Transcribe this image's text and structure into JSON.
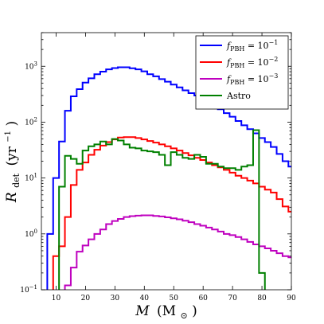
{
  "chart_data": {
    "type": "line",
    "subtype": "step-histogram",
    "xlabel_main": "M",
    "xlabel_unit": "(M",
    "xlabel_unit_sub": "⊙",
    "xlabel_unit_close": ")",
    "ylabel_main": "R",
    "ylabel_sub": "det",
    "ylabel_unit": "(yr",
    "ylabel_unit_sup": "−1",
    "ylabel_unit_close": ")",
    "xlim": [
      5,
      90
    ],
    "ylim": [
      0.1,
      4000
    ],
    "yscale": "log",
    "grid": false,
    "legend_position": "top-right",
    "x_ticks": [
      {
        "value": 10,
        "label": "10"
      },
      {
        "value": 20,
        "label": "20"
      },
      {
        "value": 30,
        "label": "30"
      },
      {
        "value": 40,
        "label": "40"
      },
      {
        "value": 50,
        "label": "50"
      },
      {
        "value": 60,
        "label": "60"
      },
      {
        "value": 70,
        "label": "70"
      },
      {
        "value": 80,
        "label": "80"
      },
      {
        "value": 90,
        "label": "90"
      }
    ],
    "y_ticks": [
      {
        "value": 0.1,
        "base": "10",
        "exp": "−1"
      },
      {
        "value": 1,
        "base": "10",
        "exp": "0"
      },
      {
        "value": 10,
        "base": "10",
        "exp": "1"
      },
      {
        "value": 100,
        "base": "10",
        "exp": "2"
      },
      {
        "value": 1000,
        "base": "10",
        "exp": "3"
      }
    ],
    "bin_edges": [
      5,
      7,
      9,
      11,
      13,
      15,
      17,
      19,
      21,
      23,
      25,
      27,
      29,
      31,
      33,
      35,
      37,
      39,
      41,
      43,
      45,
      47,
      49,
      51,
      53,
      55,
      57,
      59,
      61,
      63,
      65,
      67,
      69,
      71,
      73,
      75,
      77,
      79,
      81,
      83,
      85,
      87,
      89,
      91
    ],
    "series": [
      {
        "name_base": "f",
        "name_sub": "PBH",
        "name_eq": " = 10",
        "name_sup": "−1",
        "color": "#0000ff",
        "values": [
          null,
          1.0,
          10,
          45,
          160,
          290,
          390,
          510,
          610,
          720,
          800,
          880,
          930,
          960,
          960,
          920,
          880,
          810,
          720,
          660,
          590,
          530,
          470,
          420,
          370,
          330,
          300,
          265,
          230,
          200,
          170,
          145,
          125,
          105,
          88,
          75,
          63,
          52,
          44,
          36,
          27,
          20,
          16
        ]
      },
      {
        "name_base": "f",
        "name_sub": "PBH",
        "name_eq": " = 10",
        "name_sup": "−2",
        "color": "#ff0000",
        "values": [
          null,
          null,
          0.4,
          0.6,
          2.0,
          7.5,
          14,
          19,
          26,
          32,
          38,
          44,
          49,
          53,
          54,
          54,
          52,
          49,
          46,
          43,
          40,
          37,
          34,
          31,
          28,
          25.5,
          23,
          21,
          19,
          17,
          15.5,
          14,
          12.5,
          11,
          10,
          9,
          8,
          7,
          6.2,
          5.5,
          4.2,
          3.1,
          2.5
        ]
      },
      {
        "name_base": "f",
        "name_sub": "PBH",
        "name_eq": " = 10",
        "name_sup": "−3",
        "color": "#bf00bf",
        "values": [
          null,
          null,
          null,
          null,
          0.12,
          0.25,
          0.48,
          0.62,
          0.8,
          1.0,
          1.2,
          1.5,
          1.7,
          1.85,
          2.0,
          2.08,
          2.12,
          2.15,
          2.15,
          2.1,
          2.05,
          1.98,
          1.9,
          1.82,
          1.72,
          1.62,
          1.5,
          1.4,
          1.3,
          1.2,
          1.1,
          1.0,
          0.95,
          0.88,
          0.8,
          0.72,
          0.65,
          0.6,
          0.55,
          0.5,
          0.45,
          0.4,
          0.38
        ]
      },
      {
        "name_base": "Astro",
        "name_sub": "",
        "name_eq": "",
        "name_sup": "",
        "color": "#008000",
        "values": [
          null,
          null,
          null,
          7.0,
          25,
          22,
          18,
          31,
          37,
          40,
          45,
          40,
          50,
          47,
          40,
          35,
          34,
          31,
          30,
          29,
          26,
          17,
          29,
          26,
          23,
          22,
          26,
          24,
          18,
          18,
          16,
          15,
          15,
          14,
          16,
          17,
          72,
          0.2,
          null,
          null,
          null,
          null,
          null
        ]
      }
    ]
  }
}
